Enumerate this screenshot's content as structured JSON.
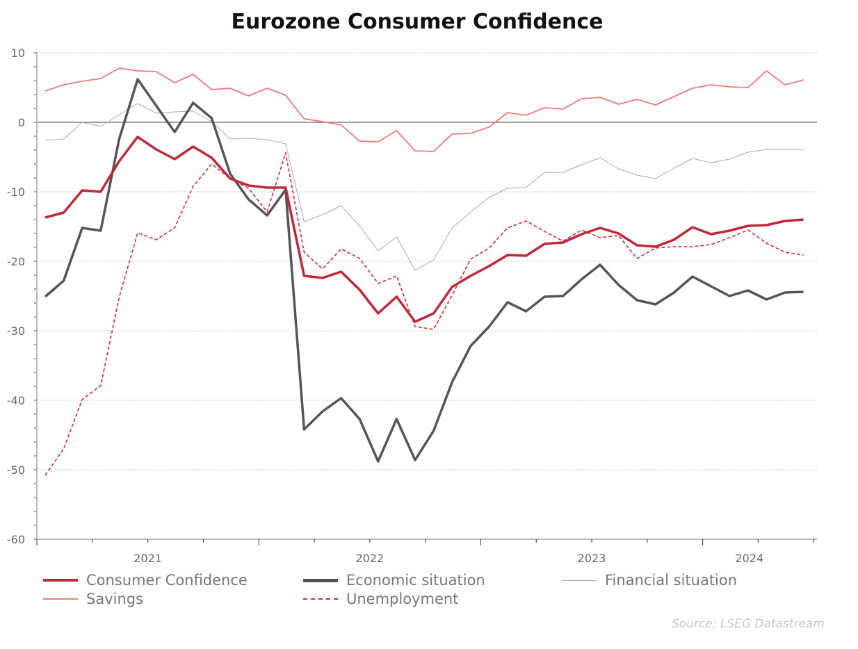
{
  "chart_data": {
    "type": "line",
    "title": "Eurozone Consumer Confidence",
    "source": "Source: LSEG Datastream",
    "xlabel": "",
    "ylabel": "",
    "ylim": [
      -60,
      10
    ],
    "yticks": [
      10,
      0,
      -10,
      -20,
      -30,
      -40,
      -50,
      -60
    ],
    "xticklabels": [
      "2021",
      "2022",
      "2023",
      "2024"
    ],
    "x": [
      "2021-01",
      "2021-02",
      "2021-03",
      "2021-04",
      "2021-05",
      "2021-06",
      "2021-07",
      "2021-08",
      "2021-09",
      "2021-10",
      "2021-11",
      "2021-12",
      "2022-01",
      "2022-02",
      "2022-03",
      "2022-04",
      "2022-05",
      "2022-06",
      "2022-07",
      "2022-08",
      "2022-09",
      "2022-10",
      "2022-11",
      "2022-12",
      "2023-01",
      "2023-02",
      "2023-03",
      "2023-04",
      "2023-05",
      "2023-06",
      "2023-07",
      "2023-08",
      "2023-09",
      "2023-10",
      "2023-11",
      "2023-12",
      "2024-01",
      "2024-02",
      "2024-03",
      "2024-04",
      "2024-05",
      "2024-06"
    ],
    "grid": "horizontal dotted",
    "legend_position": "bottom",
    "series": [
      {
        "name": "Consumer Confidence",
        "color": "#c0283a",
        "style": "solid-thick",
        "values": [
          -13.7,
          -13.0,
          -9.8,
          -10.0,
          -5.6,
          -2.1,
          -3.9,
          -5.3,
          -3.5,
          -5.1,
          -8.1,
          -9.1,
          -9.4,
          -9.4,
          -22.1,
          -22.4,
          -21.5,
          -24.1,
          -27.5,
          -25.1,
          -28.7,
          -27.5,
          -23.7,
          -22.1,
          -20.7,
          -19.1,
          -19.2,
          -17.5,
          -17.3,
          -16.1,
          -15.2,
          -16.0,
          -17.7,
          -17.9,
          -16.9,
          -15.1,
          -16.1,
          -15.6,
          -14.9,
          -14.8,
          -14.2,
          -14.0
        ]
      },
      {
        "name": "Economic situation",
        "color": "#555555",
        "style": "solid-thick",
        "values": [
          -25.1,
          -22.8,
          -15.2,
          -15.6,
          -2.4,
          6.2,
          2.4,
          -1.4,
          2.8,
          0.6,
          -7.4,
          -11.1,
          -13.4,
          -9.7,
          -44.2,
          -41.6,
          -39.7,
          -42.7,
          -48.8,
          -42.7,
          -48.6,
          -44.4,
          -37.4,
          -32.2,
          -29.4,
          -25.9,
          -27.2,
          -25.1,
          -25.0,
          -22.6,
          -20.5,
          -23.4,
          -25.6,
          -26.2,
          -24.5,
          -22.2,
          -23.6,
          -25.0,
          -24.2,
          -25.5,
          -24.5,
          -24.4
        ]
      },
      {
        "name": "Financial situation",
        "color": "#aaaaaa",
        "style": "solid-thin",
        "values": [
          -2.6,
          -2.4,
          0.0,
          -0.6,
          1.1,
          2.7,
          1.3,
          1.5,
          1.6,
          0.1,
          -2.4,
          -2.3,
          -2.5,
          -3.1,
          -14.3,
          -13.3,
          -12.0,
          -14.9,
          -18.5,
          -16.5,
          -21.3,
          -19.8,
          -15.2,
          -12.9,
          -10.8,
          -9.5,
          -9.4,
          -7.2,
          -7.2,
          -6.1,
          -5.1,
          -6.7,
          -7.6,
          -8.1,
          -6.6,
          -5.2,
          -5.8,
          -5.3,
          -4.3,
          -3.9,
          -3.9,
          -3.9
        ]
      },
      {
        "name": "Savings",
        "color": "#f07a7a",
        "style": "solid",
        "values": [
          4.5,
          5.4,
          5.9,
          6.3,
          7.8,
          7.4,
          7.3,
          5.7,
          6.9,
          4.7,
          4.9,
          3.8,
          4.9,
          3.9,
          0.5,
          0.1,
          -0.4,
          -2.7,
          -2.8,
          -1.2,
          -4.1,
          -4.2,
          -1.7,
          -1.6,
          -0.7,
          1.4,
          1.0,
          2.1,
          1.9,
          3.4,
          3.6,
          2.6,
          3.3,
          2.5,
          3.7,
          4.9,
          5.4,
          5.1,
          5.0,
          7.4,
          5.4,
          6.1
        ]
      },
      {
        "name": "Unemployment",
        "color": "#d8283e",
        "style": "dashed",
        "values": [
          -50.8,
          -47.0,
          -39.9,
          -37.9,
          -25.2,
          -15.9,
          -16.9,
          -15.2,
          -9.2,
          -6.0,
          -8.1,
          -9.5,
          -12.9,
          -4.4,
          -18.7,
          -21.1,
          -18.2,
          -19.6,
          -23.2,
          -22.1,
          -29.4,
          -29.8,
          -24.9,
          -19.7,
          -18.1,
          -15.2,
          -14.2,
          -15.7,
          -17.1,
          -15.5,
          -16.6,
          -16.3,
          -19.6,
          -18.1,
          -17.9,
          -17.9,
          -17.6,
          -16.6,
          -15.5,
          -17.4,
          -18.7,
          -19.1
        ]
      }
    ]
  }
}
